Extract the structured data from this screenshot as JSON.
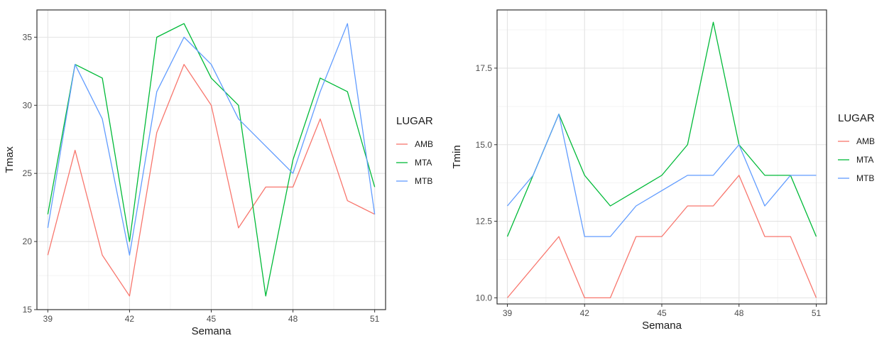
{
  "chart_data": [
    {
      "type": "line",
      "xlabel": "Semana",
      "ylabel": "Tmax",
      "xlim": [
        38.6,
        51.4
      ],
      "ylim": [
        15,
        37
      ],
      "x_ticks": [
        39,
        42,
        45,
        48,
        51
      ],
      "x_tick_labels": [
        "39",
        "42",
        "45",
        "48",
        "51"
      ],
      "y_ticks": [
        15,
        20,
        25,
        30,
        35
      ],
      "y_tick_labels": [
        "15",
        "20",
        "25",
        "30",
        "35"
      ],
      "grid": true,
      "legend": {
        "title": "LUGAR",
        "position": "right"
      },
      "x": [
        39,
        40,
        41,
        42,
        43,
        44,
        45,
        46,
        47,
        48,
        49,
        50,
        51
      ],
      "series": [
        {
          "name": "AMB",
          "color": "#F8766D",
          "values": [
            19,
            26.7,
            19,
            16,
            28,
            33,
            30,
            21,
            24,
            24,
            29,
            23,
            22
          ]
        },
        {
          "name": "MTA",
          "color": "#00BA38",
          "values": [
            22,
            33,
            32,
            20,
            35,
            36,
            32,
            30,
            16,
            26,
            32,
            31,
            24
          ]
        },
        {
          "name": "MTB",
          "color": "#619CFF",
          "values": [
            21,
            33,
            29,
            19,
            31,
            35,
            33,
            29,
            27,
            25,
            31,
            36,
            22
          ]
        }
      ]
    },
    {
      "type": "line",
      "xlabel": "Semana",
      "ylabel": "Tmin",
      "xlim": [
        38.6,
        51.4
      ],
      "ylim": [
        9.8,
        19.4
      ],
      "x_ticks": [
        39,
        42,
        45,
        48,
        51
      ],
      "x_tick_labels": [
        "39",
        "42",
        "45",
        "48",
        "51"
      ],
      "y_ticks": [
        10,
        12.5,
        15,
        17.5
      ],
      "y_tick_labels": [
        "10.0",
        "12.5",
        "15.0",
        "17.5"
      ],
      "grid": true,
      "legend": {
        "title": "LUGAR",
        "position": "right"
      },
      "x": [
        39,
        40,
        41,
        42,
        43,
        44,
        45,
        46,
        47,
        48,
        49,
        50,
        51
      ],
      "series": [
        {
          "name": "AMB",
          "color": "#F8766D",
          "values": [
            10,
            11,
            12,
            10,
            10,
            12,
            12,
            13,
            13,
            14,
            12,
            12,
            10
          ]
        },
        {
          "name": "MTA",
          "color": "#00BA38",
          "values": [
            12,
            14,
            16,
            14,
            13,
            13.5,
            14,
            15,
            19,
            15,
            14,
            14,
            12
          ]
        },
        {
          "name": "MTB",
          "color": "#619CFF",
          "values": [
            13,
            14,
            16,
            12,
            12,
            13,
            13.5,
            14,
            14,
            15,
            13,
            14,
            14
          ]
        }
      ]
    }
  ]
}
